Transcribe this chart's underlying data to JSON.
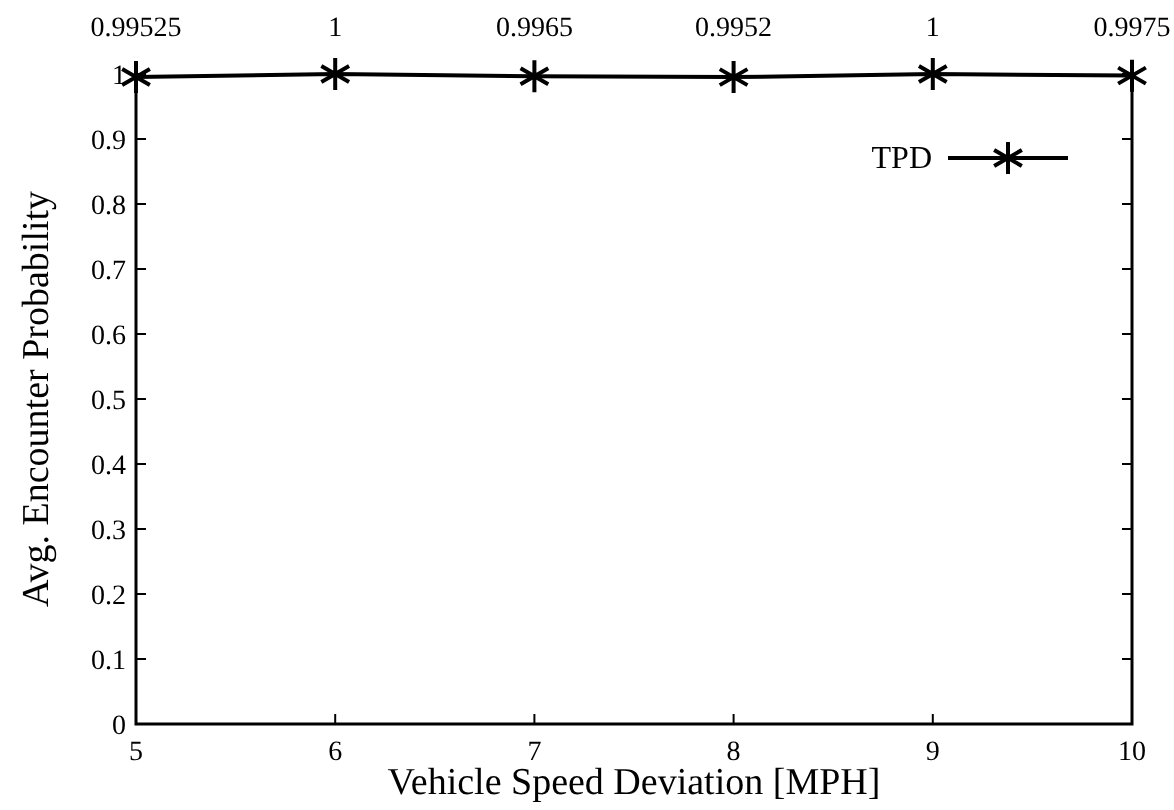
{
  "chart_data": {
    "type": "line",
    "xlabel": "Vehicle Speed Deviation [MPH]",
    "ylabel": "Avg. Encounter Probability",
    "x": [
      5,
      6,
      7,
      8,
      9,
      10
    ],
    "series": [
      {
        "name": "TPD",
        "color": "#000000",
        "values": [
          0.99525,
          1,
          0.9965,
          0.9952,
          1,
          0.9975
        ]
      }
    ],
    "xlim": [
      5,
      10
    ],
    "xticks": [
      5,
      6,
      7,
      8,
      9,
      10
    ],
    "ylim": [
      0,
      1
    ],
    "yticks": [
      0,
      0.1,
      0.2,
      0.3,
      0.4,
      0.5,
      0.6,
      0.7,
      0.8,
      0.9,
      1
    ],
    "data_labels": true,
    "grid": false,
    "legend": "top right",
    "marker": "cross",
    "line_style": "solid"
  }
}
